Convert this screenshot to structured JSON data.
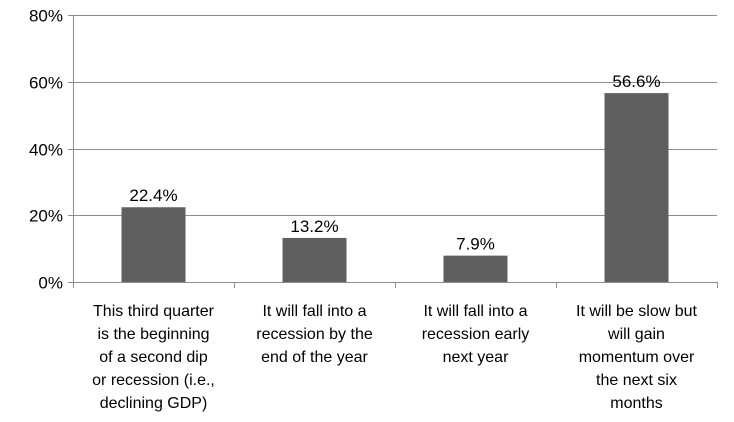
{
  "chart_data": {
    "type": "bar",
    "categories": [
      [
        "This third quarter",
        "is the beginning",
        "of a second dip",
        "or recession (i.e.,",
        "declining GDP)"
      ],
      [
        "It will fall into a",
        "recession by the",
        "end of the year"
      ],
      [
        "It will fall into a",
        "recession early",
        "next year"
      ],
      [
        "It will be slow but",
        "will gain",
        "momentum over",
        "the next six",
        "months"
      ]
    ],
    "values": [
      22.4,
      13.2,
      7.9,
      56.6
    ],
    "data_labels": [
      "22.4%",
      "13.2%",
      "7.9%",
      "56.6%"
    ],
    "ylim": [
      0,
      80
    ],
    "yticks": [
      0,
      20,
      40,
      60,
      80
    ],
    "ytick_labels": [
      "0%",
      "20%",
      "40%",
      "60%",
      "80%"
    ],
    "grid": true,
    "legend": "none",
    "title": "",
    "xlabel": "",
    "ylabel": "",
    "colors": {
      "bar": "#5f5f5f",
      "grid": "#8c8c8c",
      "axis": "#8c8c8c"
    }
  }
}
